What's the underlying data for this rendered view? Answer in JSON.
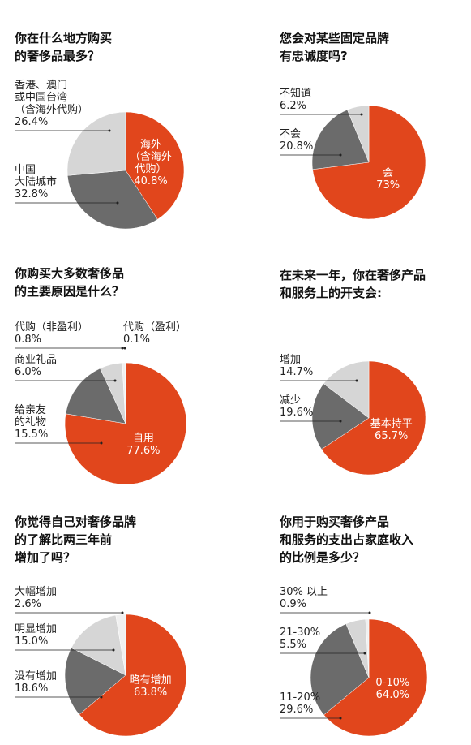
{
  "chart_data": [
    {
      "type": "pie",
      "title": "你在什么地方购买\n的奢侈品最多？",
      "categories": [
        "海外\n（含海外\n代购）",
        "中国\n大陆城市",
        "香港、澳门\n或中国台湾\n（含海外代购）"
      ],
      "values": [
        40.8,
        32.8,
        26.4
      ],
      "value_labels": [
        "40.8%",
        "32.8%",
        "26.4%"
      ],
      "colors": [
        "#e1461c",
        "#6b6b6b",
        "#d6d6d6"
      ]
    },
    {
      "type": "pie",
      "title": "您会对某些固定品牌\n有忠诚度吗?",
      "categories": [
        "会",
        "不会",
        "不知道"
      ],
      "values": [
        73,
        20.8,
        6.2
      ],
      "value_labels": [
        "73%",
        "20.8%",
        "6.2%"
      ],
      "colors": [
        "#e1461c",
        "#6b6b6b",
        "#d6d6d6"
      ]
    },
    {
      "type": "pie",
      "title": "你购买大多数奢侈品\n的主要原因是什么？",
      "categories": [
        "自用",
        "给亲友\n的礼物",
        "商业礼品",
        "代购（非盈利）",
        "代购（盈利）"
      ],
      "values": [
        77.6,
        15.5,
        6.0,
        0.8,
        0.1
      ],
      "value_labels": [
        "77.6%",
        "15.5%",
        "6.0%",
        "0.8%",
        "0.1%"
      ],
      "colors": [
        "#e1461c",
        "#6b6b6b",
        "#d6d6d6",
        "#f0f0f0",
        "#bbbbbb"
      ]
    },
    {
      "type": "pie",
      "title": "在未来一年，你在奢侈产品\n和服务上的开支会:",
      "categories": [
        "基本持平",
        "减少",
        "增加"
      ],
      "values": [
        65.7,
        19.6,
        14.7
      ],
      "value_labels": [
        "65.7%",
        "19.6%",
        "14.7%"
      ],
      "colors": [
        "#e1461c",
        "#6b6b6b",
        "#d6d6d6"
      ]
    },
    {
      "type": "pie",
      "title": "你觉得自己对奢侈品牌\n的了解比两三年前\n增加了吗？",
      "categories": [
        "略有增加",
        "没有增加",
        "明显增加",
        "大幅增加"
      ],
      "values": [
        63.8,
        18.6,
        15.0,
        2.6
      ],
      "value_labels": [
        "63.8%",
        "18.6%",
        "15.0%",
        "2.6%"
      ],
      "colors": [
        "#e1461c",
        "#6b6b6b",
        "#d6d6d6",
        "#f0f0f0"
      ]
    },
    {
      "type": "pie",
      "title": "你用于购买奢侈产品\n和服务的支出占家庭收入\n的比例是多少？",
      "categories": [
        "0-10%",
        "11-20%",
        "21-30%",
        "30% 以上"
      ],
      "values": [
        64.0,
        29.6,
        5.5,
        0.9
      ],
      "value_labels": [
        "64.0%",
        "29.6%",
        "5.5%",
        "0.9%"
      ],
      "colors": [
        "#e1461c",
        "#6b6b6b",
        "#d6d6d6",
        "#f0f0f0"
      ]
    }
  ]
}
